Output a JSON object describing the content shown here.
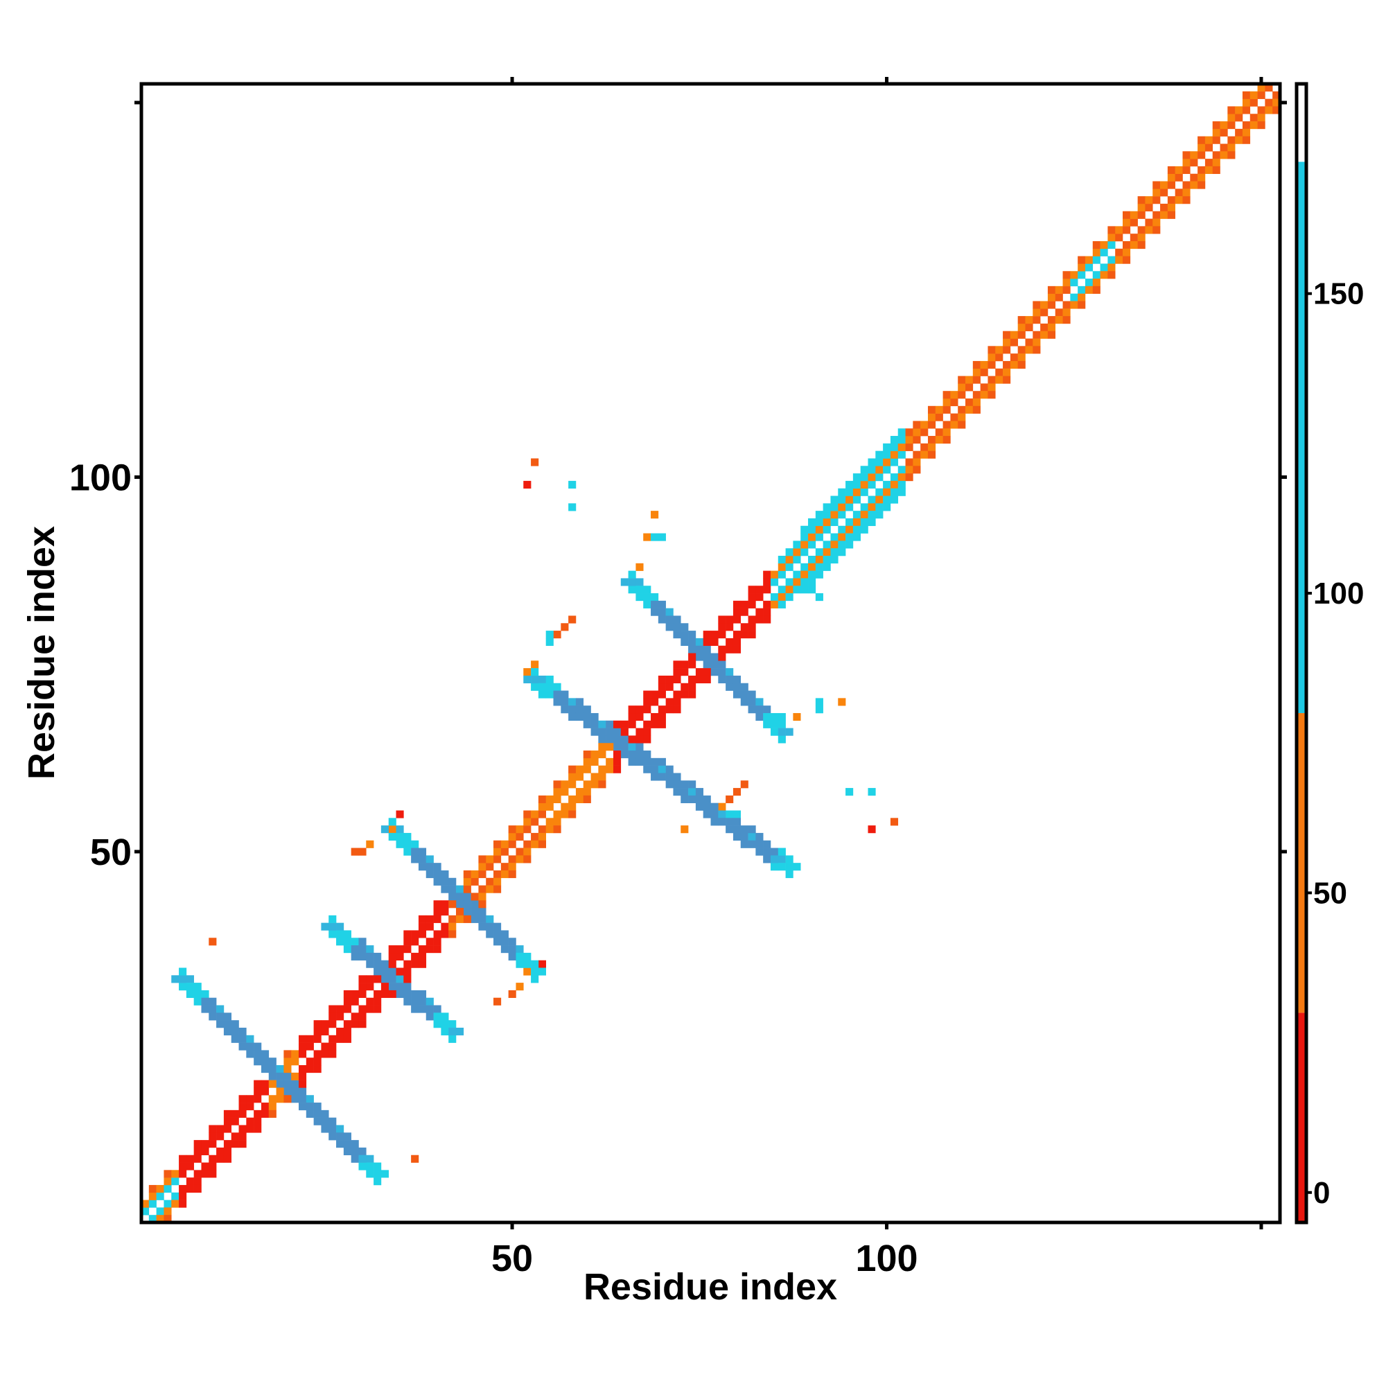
{
  "chart_data": {
    "type": "heatmap",
    "title": "",
    "xlabel": "Residue index",
    "ylabel": "Residue index",
    "xlim": [
      0.5,
      152.5
    ],
    "ylim": [
      0.5,
      152.5
    ],
    "x_ticks": [
      50,
      100,
      150
    ],
    "x_tick_labels": [
      "50",
      "100",
      ""
    ],
    "y_ticks": [
      50,
      100,
      150
    ],
    "y_tick_labels": [
      "50",
      "100",
      ""
    ],
    "grid": false,
    "legend_placement": "right",
    "colorbar": {
      "range": [
        -5,
        185
      ],
      "ticks": [
        0,
        50,
        100,
        150
      ],
      "tick_labels": [
        "0",
        "50",
        "100",
        "150"
      ],
      "bands": [
        {
          "from": -5,
          "to": 30,
          "color": "#e8170f"
        },
        {
          "from": 30,
          "to": 80,
          "color": "#f47a12"
        },
        {
          "from": 80,
          "to": 172,
          "color": "#1ec8e2"
        },
        {
          "from": 172,
          "to": 185,
          "color": "#ffffff"
        }
      ]
    },
    "colors": {
      "red": "#ef1c0d",
      "orange": "#f9840c",
      "orange_red": "#f25a12",
      "cyan": "#20d2e6",
      "steel_blue": "#4a90c8",
      "light_blue": "#33b4dd"
    },
    "diagonal": {
      "from": 1,
      "to": 152,
      "segments": [
        {
          "from": 1,
          "to": 6,
          "color": "#20d2e6"
        },
        {
          "from": 6,
          "to": 18,
          "color": "#ef1c0d"
        },
        {
          "from": 18,
          "to": 22,
          "color": "#f9840c"
        },
        {
          "from": 22,
          "to": 34,
          "color": "#ef1c0d"
        },
        {
          "from": 34,
          "to": 42,
          "color": "#ef1c0d"
        },
        {
          "from": 42,
          "to": 55,
          "color": "#f25a12"
        },
        {
          "from": 55,
          "to": 64,
          "color": "#f9840c"
        },
        {
          "from": 64,
          "to": 76,
          "color": "#ef1c0d"
        },
        {
          "from": 76,
          "to": 85,
          "color": "#ef1c0d"
        },
        {
          "from": 85,
          "to": 103,
          "color": "#20d2e6"
        },
        {
          "from": 103,
          "to": 125,
          "color": "#f25a12"
        },
        {
          "from": 125,
          "to": 131,
          "color": "#20d2e6"
        },
        {
          "from": 131,
          "to": 152,
          "color": "#f25a12"
        }
      ]
    },
    "anti_diagonal_strands": [
      {
        "pairs": [
          [
            7,
            32
          ],
          [
            32,
            7
          ]
        ],
        "start": [
          6,
          33
        ],
        "end": [
          32,
          7
        ],
        "color": "#4a90c8"
      },
      {
        "start": [
          26,
          40
        ],
        "end": [
          42,
          26
        ],
        "color": "#4a90c8"
      },
      {
        "start": [
          34,
          53
        ],
        "end": [
          53,
          34
        ],
        "color": "#4a90c8"
      },
      {
        "start": [
          53,
          73
        ],
        "end": [
          87,
          48
        ],
        "color": "#4a90c8"
      },
      {
        "start": [
          66,
          86
        ],
        "end": [
          86,
          66
        ],
        "color": "#4a90c8"
      }
    ],
    "scattered_contacts": [
      {
        "x": 53,
        "y": 102,
        "color": "#f25a12"
      },
      {
        "x": 52,
        "y": 99,
        "color": "#ef1c0d"
      },
      {
        "x": 58,
        "y": 99,
        "color": "#20d2e6"
      },
      {
        "x": 58,
        "y": 96,
        "color": "#20d2e6"
      },
      {
        "x": 69,
        "y": 95,
        "color": "#f9840c"
      },
      {
        "x": 68,
        "y": 92,
        "color": "#f9840c"
      },
      {
        "x": 69,
        "y": 92,
        "color": "#20d2e6"
      },
      {
        "x": 70,
        "y": 92,
        "color": "#20d2e6"
      },
      {
        "x": 67,
        "y": 88,
        "color": "#f9840c"
      },
      {
        "x": 58,
        "y": 81,
        "color": "#f25a12"
      },
      {
        "x": 57,
        "y": 80,
        "color": "#f25a12"
      },
      {
        "x": 56,
        "y": 79,
        "color": "#f25a12"
      },
      {
        "x": 55,
        "y": 79,
        "color": "#20d2e6"
      },
      {
        "x": 55,
        "y": 78,
        "color": "#20d2e6"
      },
      {
        "x": 53,
        "y": 75,
        "color": "#f9840c"
      },
      {
        "x": 52,
        "y": 74,
        "color": "#f9840c"
      },
      {
        "x": 91,
        "y": 70,
        "color": "#20d2e6"
      },
      {
        "x": 91,
        "y": 69,
        "color": "#20d2e6"
      },
      {
        "x": 94,
        "y": 70,
        "color": "#f9840c"
      },
      {
        "x": 95,
        "y": 58,
        "color": "#20d2e6"
      },
      {
        "x": 98,
        "y": 58,
        "color": "#20d2e6"
      },
      {
        "x": 81,
        "y": 59,
        "color": "#f25a12"
      },
      {
        "x": 80,
        "y": 58,
        "color": "#f25a12"
      },
      {
        "x": 79,
        "y": 57,
        "color": "#f25a12"
      },
      {
        "x": 78,
        "y": 56,
        "color": "#f9840c"
      },
      {
        "x": 79,
        "y": 55,
        "color": "#20d2e6"
      },
      {
        "x": 80,
        "y": 55,
        "color": "#20d2e6"
      },
      {
        "x": 73,
        "y": 53,
        "color": "#f9840c"
      },
      {
        "x": 98,
        "y": 53,
        "color": "#ef1c0d"
      },
      {
        "x": 101,
        "y": 54,
        "color": "#f25a12"
      },
      {
        "x": 88,
        "y": 68,
        "color": "#f9840c"
      },
      {
        "x": 35,
        "y": 55,
        "color": "#ef1c0d"
      },
      {
        "x": 34,
        "y": 53,
        "color": "#f9840c"
      },
      {
        "x": 31,
        "y": 51,
        "color": "#f9840c"
      },
      {
        "x": 30,
        "y": 50,
        "color": "#f25a12"
      },
      {
        "x": 29,
        "y": 50,
        "color": "#f25a12"
      },
      {
        "x": 10,
        "y": 38,
        "color": "#f25a12"
      },
      {
        "x": 37,
        "y": 9,
        "color": "#f25a12"
      },
      {
        "x": 54,
        "y": 35,
        "color": "#ef1c0d"
      },
      {
        "x": 52,
        "y": 34,
        "color": "#f9840c"
      },
      {
        "x": 51,
        "y": 32,
        "color": "#f9840c"
      },
      {
        "x": 50,
        "y": 31,
        "color": "#f25a12"
      },
      {
        "x": 48,
        "y": 30,
        "color": "#f25a12"
      },
      {
        "x": 41,
        "y": 27,
        "color": "#20d2e6"
      },
      {
        "x": 89,
        "y": 85,
        "color": "#20d2e6"
      },
      {
        "x": 90,
        "y": 85,
        "color": "#20d2e6"
      },
      {
        "x": 91,
        "y": 84,
        "color": "#20d2e6"
      },
      {
        "x": 85,
        "y": 68,
        "color": "#20d2e6"
      },
      {
        "x": 86,
        "y": 68,
        "color": "#20d2e6"
      },
      {
        "x": 86,
        "y": 67,
        "color": "#20d2e6"
      }
    ],
    "series": []
  }
}
